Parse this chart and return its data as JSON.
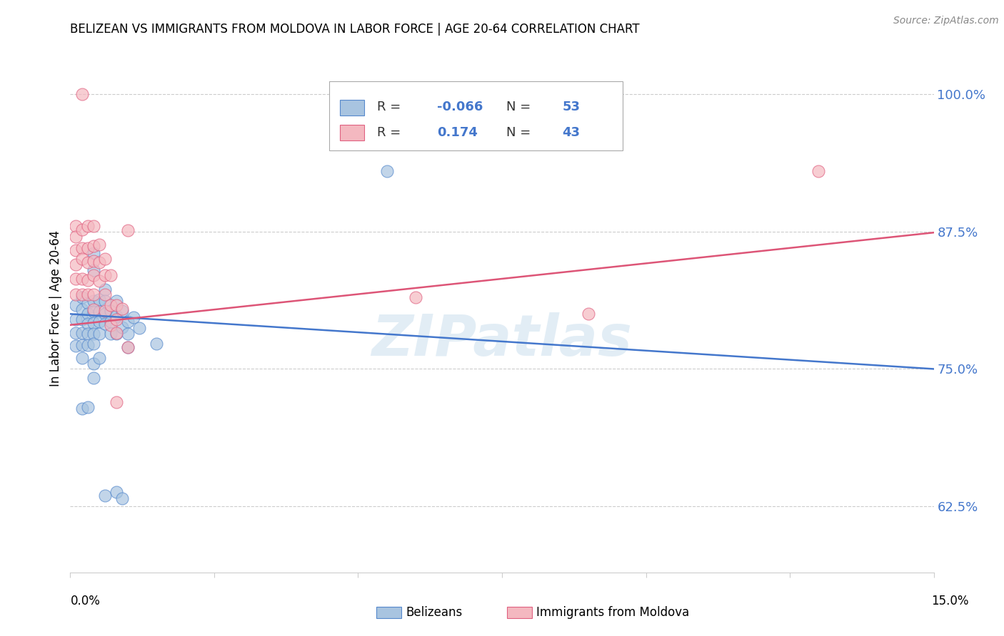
{
  "title": "BELIZEAN VS IMMIGRANTS FROM MOLDOVA IN LABOR FORCE | AGE 20-64 CORRELATION CHART",
  "source": "Source: ZipAtlas.com",
  "ylabel": "In Labor Force | Age 20-64",
  "ytick_labels": [
    "62.5%",
    "75.0%",
    "87.5%",
    "100.0%"
  ],
  "ytick_values": [
    0.625,
    0.75,
    0.875,
    1.0
  ],
  "xlim": [
    0.0,
    0.15
  ],
  "ylim": [
    0.565,
    1.045
  ],
  "blue_R": "-0.066",
  "blue_N": "53",
  "pink_R": "0.174",
  "pink_N": "43",
  "blue_color": "#a8c4e0",
  "pink_color": "#f4b8c0",
  "blue_edge_color": "#5588cc",
  "pink_edge_color": "#e06080",
  "blue_line_color": "#4477cc",
  "pink_line_color": "#dd5577",
  "watermark": "ZIPatlas",
  "legend_label_blue": "Belizeans",
  "legend_label_pink": "Immigrants from Moldova",
  "blue_points": [
    [
      0.001,
      0.808
    ],
    [
      0.001,
      0.795
    ],
    [
      0.001,
      0.783
    ],
    [
      0.001,
      0.771
    ],
    [
      0.002,
      0.815
    ],
    [
      0.002,
      0.804
    ],
    [
      0.002,
      0.795
    ],
    [
      0.002,
      0.783
    ],
    [
      0.002,
      0.772
    ],
    [
      0.002,
      0.76
    ],
    [
      0.003,
      0.81
    ],
    [
      0.003,
      0.8
    ],
    [
      0.003,
      0.791
    ],
    [
      0.003,
      0.782
    ],
    [
      0.003,
      0.772
    ],
    [
      0.004,
      0.855
    ],
    [
      0.004,
      0.84
    ],
    [
      0.004,
      0.812
    ],
    [
      0.004,
      0.802
    ],
    [
      0.004,
      0.792
    ],
    [
      0.004,
      0.782
    ],
    [
      0.004,
      0.773
    ],
    [
      0.005,
      0.813
    ],
    [
      0.005,
      0.802
    ],
    [
      0.005,
      0.793
    ],
    [
      0.005,
      0.782
    ],
    [
      0.006,
      0.822
    ],
    [
      0.006,
      0.812
    ],
    [
      0.006,
      0.8
    ],
    [
      0.006,
      0.791
    ],
    [
      0.007,
      0.803
    ],
    [
      0.007,
      0.793
    ],
    [
      0.007,
      0.782
    ],
    [
      0.008,
      0.812
    ],
    [
      0.008,
      0.798
    ],
    [
      0.008,
      0.782
    ],
    [
      0.009,
      0.803
    ],
    [
      0.009,
      0.788
    ],
    [
      0.01,
      0.793
    ],
    [
      0.01,
      0.782
    ],
    [
      0.01,
      0.77
    ],
    [
      0.011,
      0.797
    ],
    [
      0.012,
      0.787
    ],
    [
      0.002,
      0.714
    ],
    [
      0.003,
      0.715
    ],
    [
      0.004,
      0.755
    ],
    [
      0.004,
      0.742
    ],
    [
      0.005,
      0.76
    ],
    [
      0.006,
      0.635
    ],
    [
      0.008,
      0.638
    ],
    [
      0.009,
      0.632
    ],
    [
      0.015,
      0.773
    ],
    [
      0.055,
      0.93
    ]
  ],
  "pink_points": [
    [
      0.002,
      1.0
    ],
    [
      0.001,
      0.88
    ],
    [
      0.001,
      0.87
    ],
    [
      0.001,
      0.858
    ],
    [
      0.001,
      0.845
    ],
    [
      0.001,
      0.832
    ],
    [
      0.001,
      0.818
    ],
    [
      0.002,
      0.877
    ],
    [
      0.002,
      0.86
    ],
    [
      0.002,
      0.85
    ],
    [
      0.002,
      0.832
    ],
    [
      0.002,
      0.818
    ],
    [
      0.003,
      0.88
    ],
    [
      0.003,
      0.86
    ],
    [
      0.003,
      0.847
    ],
    [
      0.003,
      0.831
    ],
    [
      0.003,
      0.818
    ],
    [
      0.004,
      0.88
    ],
    [
      0.004,
      0.862
    ],
    [
      0.004,
      0.848
    ],
    [
      0.004,
      0.835
    ],
    [
      0.004,
      0.818
    ],
    [
      0.004,
      0.804
    ],
    [
      0.005,
      0.863
    ],
    [
      0.005,
      0.847
    ],
    [
      0.005,
      0.83
    ],
    [
      0.006,
      0.85
    ],
    [
      0.006,
      0.835
    ],
    [
      0.006,
      0.818
    ],
    [
      0.006,
      0.803
    ],
    [
      0.007,
      0.835
    ],
    [
      0.007,
      0.808
    ],
    [
      0.007,
      0.79
    ],
    [
      0.008,
      0.808
    ],
    [
      0.008,
      0.795
    ],
    [
      0.008,
      0.783
    ],
    [
      0.008,
      0.72
    ],
    [
      0.009,
      0.805
    ],
    [
      0.01,
      0.876
    ],
    [
      0.01,
      0.77
    ],
    [
      0.06,
      0.815
    ],
    [
      0.09,
      0.8
    ],
    [
      0.13,
      0.93
    ]
  ],
  "blue_trend_x": [
    0.0,
    0.15
  ],
  "blue_trend_y": [
    0.8,
    0.75
  ],
  "pink_trend_x": [
    0.0,
    0.15
  ],
  "pink_trend_y": [
    0.79,
    0.874
  ]
}
